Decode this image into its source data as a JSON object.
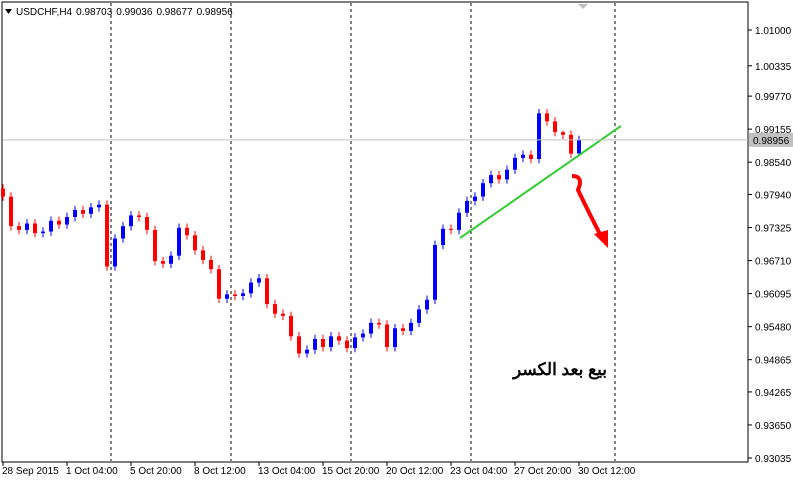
{
  "chart_data": {
    "type": "candlestick",
    "title": "USDCHF,H4",
    "annotation": "بيع بعد الكسر",
    "categories": [
      "28 Sep 2015",
      null,
      null,
      null,
      null,
      null,
      null,
      null,
      "1 Oct 04:00",
      null,
      null,
      null,
      null,
      null,
      null,
      null,
      "5 Oct 20:00",
      null,
      null,
      null,
      null,
      null,
      null,
      null,
      "8 Oct 12:00",
      null,
      null,
      null,
      null,
      null,
      null,
      null,
      "13 Oct 04:00",
      null,
      null,
      null,
      null,
      null,
      null,
      null,
      "15 Oct 20:00",
      null,
      null,
      null,
      null,
      null,
      null,
      null,
      "20 Oct 12:00",
      null,
      null,
      null,
      null,
      null,
      null,
      null,
      "23 Oct 04:00",
      null,
      null,
      null,
      null,
      null,
      null,
      null,
      "27 Oct 20:00",
      null,
      null,
      null,
      null,
      null,
      null,
      null,
      "30 Oct 12:00"
    ],
    "open": [
      0.9805,
      0.979,
      0.9735,
      0.9728,
      0.974,
      0.9722,
      0.9725,
      0.9745,
      0.9738,
      0.9752,
      0.9765,
      0.9758,
      0.977,
      0.9775,
      0.966,
      0.9712,
      0.9735,
      0.9755,
      0.9752,
      0.9728,
      0.967,
      0.9665,
      0.968,
      0.9732,
      0.9718,
      0.969,
      0.9672,
      0.9655,
      0.96,
      0.9608,
      0.9605,
      0.961,
      0.963,
      0.9638,
      0.959,
      0.9572,
      0.9568,
      0.953,
      0.9498,
      0.9505,
      0.9525,
      0.951,
      0.953,
      0.9522,
      0.9508,
      0.9528,
      0.9535,
      0.9555,
      0.9552,
      0.951,
      0.9545,
      0.954,
      0.9555,
      0.958,
      0.9598,
      0.97,
      0.973,
      0.9728,
      0.976,
      0.9782,
      0.979,
      0.9815,
      0.983,
      0.9822,
      0.984,
      0.9862,
      0.9868,
      0.986,
      0.9945,
      0.993,
      0.991,
      0.9905,
      0.98703
    ],
    "high": [
      0.9813,
      0.9798,
      0.9743,
      0.9748,
      0.9748,
      0.9733,
      0.9753,
      0.9753,
      0.976,
      0.9773,
      0.9773,
      0.9778,
      0.9783,
      0.9783,
      0.972,
      0.9743,
      0.9763,
      0.9763,
      0.976,
      0.9736,
      0.9678,
      0.9688,
      0.974,
      0.974,
      0.9726,
      0.9698,
      0.968,
      0.9663,
      0.9616,
      0.9616,
      0.9618,
      0.9638,
      0.9646,
      0.9646,
      0.9598,
      0.958,
      0.9576,
      0.9538,
      0.9513,
      0.9533,
      0.9533,
      0.9538,
      0.9538,
      0.953,
      0.9536,
      0.9543,
      0.9563,
      0.9563,
      0.956,
      0.9553,
      0.9553,
      0.9563,
      0.9588,
      0.9606,
      0.9708,
      0.9738,
      0.9738,
      0.9768,
      0.979,
      0.9798,
      0.9823,
      0.9838,
      0.9838,
      0.9848,
      0.987,
      0.9876,
      0.9876,
      0.9953,
      0.9953,
      0.9938,
      0.9913,
      0.9913,
      0.99036
    ],
    "low": [
      0.9782,
      0.9727,
      0.972,
      0.972,
      0.9714,
      0.9714,
      0.9717,
      0.973,
      0.973,
      0.9744,
      0.975,
      0.975,
      0.9762,
      0.9652,
      0.9652,
      0.9704,
      0.9727,
      0.9744,
      0.972,
      0.9662,
      0.9657,
      0.9657,
      0.9672,
      0.971,
      0.9682,
      0.9664,
      0.9647,
      0.9592,
      0.9592,
      0.9597,
      0.9597,
      0.9602,
      0.9622,
      0.9582,
      0.9564,
      0.956,
      0.9522,
      0.949,
      0.949,
      0.9497,
      0.9502,
      0.9502,
      0.9514,
      0.95,
      0.95,
      0.952,
      0.9527,
      0.9544,
      0.9502,
      0.9502,
      0.9532,
      0.9532,
      0.9547,
      0.9572,
      0.959,
      0.9692,
      0.972,
      0.972,
      0.9752,
      0.9774,
      0.9782,
      0.9807,
      0.9814,
      0.9814,
      0.9832,
      0.9854,
      0.9852,
      0.9852,
      0.9922,
      0.9902,
      0.9897,
      0.9862,
      0.98677
    ],
    "close": [
      0.979,
      0.9735,
      0.9728,
      0.974,
      0.9722,
      0.9725,
      0.9745,
      0.9738,
      0.9752,
      0.9765,
      0.9758,
      0.977,
      0.9775,
      0.966,
      0.9712,
      0.9735,
      0.9755,
      0.9752,
      0.9728,
      0.967,
      0.9665,
      0.968,
      0.9732,
      0.9718,
      0.969,
      0.9672,
      0.9655,
      0.96,
      0.9608,
      0.9605,
      0.961,
      0.963,
      0.9638,
      0.959,
      0.9572,
      0.9568,
      0.953,
      0.9498,
      0.9505,
      0.9525,
      0.951,
      0.953,
      0.9522,
      0.9508,
      0.9528,
      0.9535,
      0.9555,
      0.9552,
      0.951,
      0.9545,
      0.954,
      0.9555,
      0.958,
      0.9598,
      0.97,
      0.973,
      0.9728,
      0.976,
      0.9782,
      0.979,
      0.9815,
      0.983,
      0.9822,
      0.984,
      0.9862,
      0.9868,
      0.986,
      0.9945,
      0.993,
      0.991,
      0.9905,
      0.987,
      0.98956
    ],
    "up_color": "#0000ff",
    "down_color": "#ff0000",
    "ylim": [
      0.92942,
      1.01559
    ],
    "yticks": [
      {
        "value": 1.01,
        "label": "1.01000"
      },
      {
        "value": 1.00335,
        "label": "1.00335"
      },
      {
        "value": 0.9977,
        "label": "0.99770"
      },
      {
        "value": 0.99155,
        "label": "0.99155"
      },
      {
        "value": 0.9854,
        "label": "0.98540"
      },
      {
        "value": 0.9794,
        "label": "0.97940"
      },
      {
        "value": 0.97325,
        "label": "0.97325"
      },
      {
        "value": 0.9671,
        "label": "0.96710"
      },
      {
        "value": 0.96095,
        "label": "0.96095"
      },
      {
        "value": 0.9548,
        "label": "0.95480"
      },
      {
        "value": 0.94865,
        "label": "0.94865"
      },
      {
        "value": 0.94265,
        "label": "0.94265"
      },
      {
        "value": 0.9365,
        "label": "0.93650"
      },
      {
        "value": 0.93035,
        "label": "0.93035"
      }
    ]
  }
}
